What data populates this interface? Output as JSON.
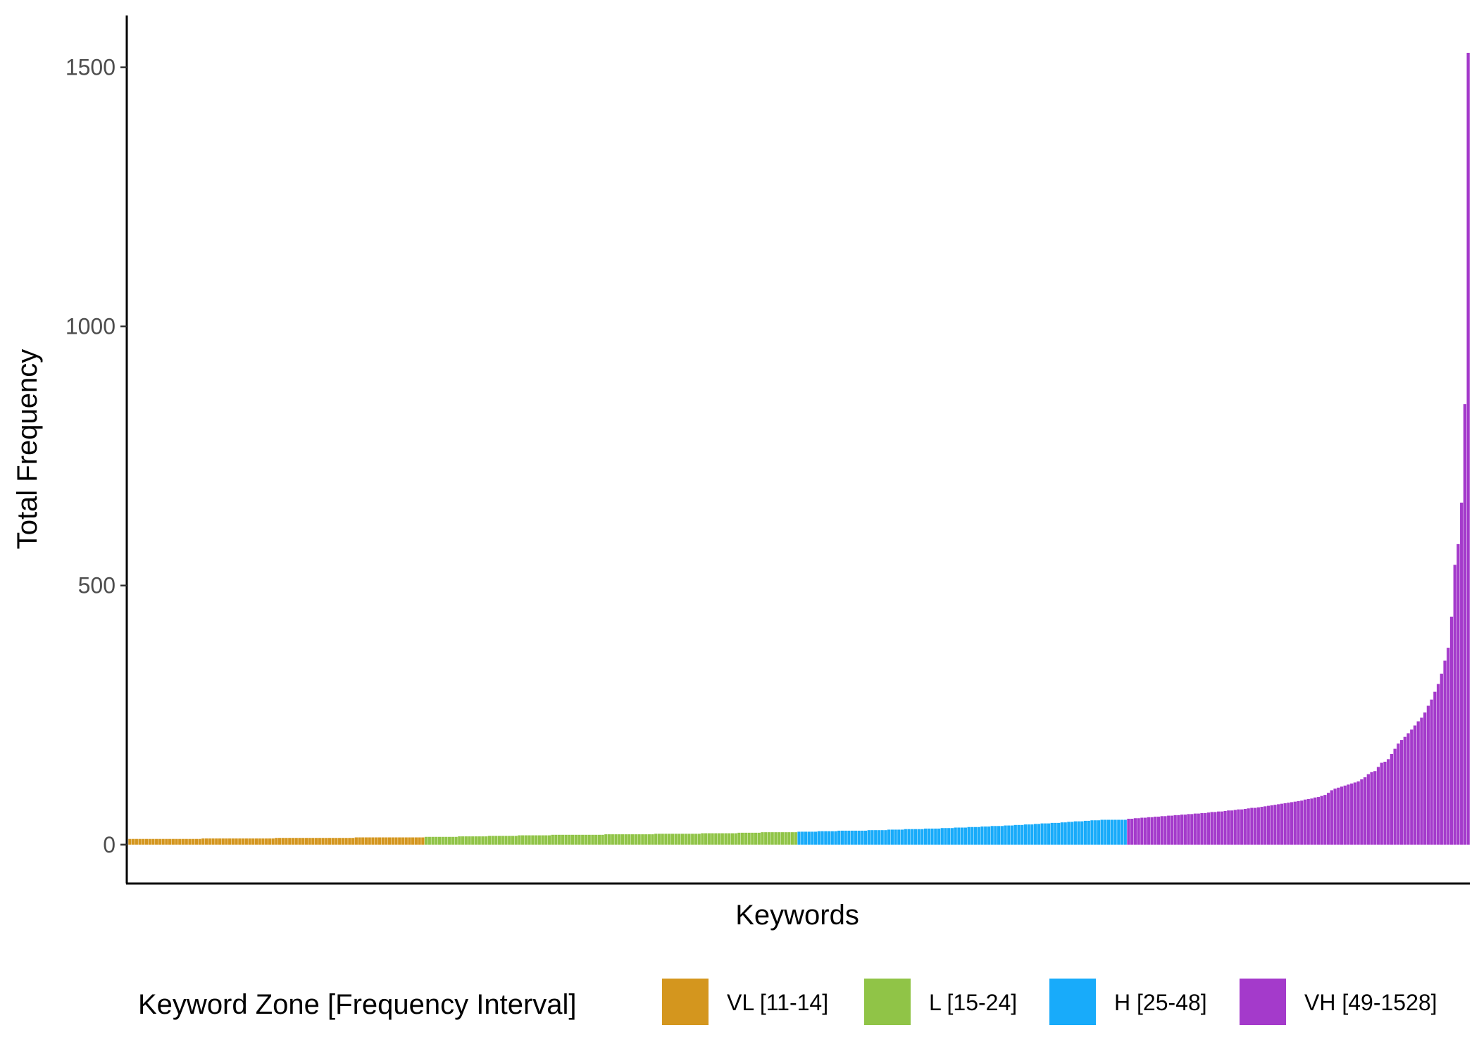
{
  "chart_data": {
    "type": "bar",
    "xlabel": "Keywords",
    "ylabel": "Total Frequency",
    "ylim": [
      -75,
      1600
    ],
    "y_ticks": [
      0,
      500,
      1000,
      1500
    ],
    "x_tick_labels": "none",
    "grid": false,
    "legend_position": "bottom",
    "legend": {
      "title": "Keyword Zone [Frequency Interval]",
      "entries": [
        {
          "label": "VL [11-14]",
          "color": "#D4961E"
        },
        {
          "label": "L [15-24]",
          "color": "#90C447"
        },
        {
          "label": "H [25-48]",
          "color": "#18ABFA"
        },
        {
          "label": "VH [49-1528]",
          "color": "#A43ACB"
        }
      ]
    },
    "series": [
      {
        "name": "VL [11-14]",
        "color": "#D4961E",
        "values": [
          11,
          11,
          11,
          11,
          11,
          11,
          11,
          11,
          11,
          11,
          11,
          11,
          11,
          11,
          11,
          11,
          11,
          11,
          11,
          11,
          11,
          11,
          12,
          12,
          12,
          12,
          12,
          12,
          12,
          12,
          12,
          12,
          12,
          12,
          12,
          12,
          12,
          12,
          12,
          12,
          12,
          12,
          12,
          12,
          13,
          13,
          13,
          13,
          13,
          13,
          13,
          13,
          13,
          13,
          13,
          13,
          13,
          13,
          13,
          13,
          13,
          13,
          13,
          13,
          13,
          13,
          13,
          13,
          14,
          14,
          14,
          14,
          14,
          14,
          14,
          14,
          14,
          14,
          14,
          14,
          14,
          14,
          14,
          14,
          14,
          14,
          14,
          14,
          14
        ]
      },
      {
        "name": "L [15-24]",
        "color": "#90C447",
        "values": [
          15,
          15,
          15,
          15,
          15,
          15,
          15,
          15,
          15,
          15,
          16,
          16,
          16,
          16,
          16,
          16,
          16,
          16,
          16,
          17,
          17,
          17,
          17,
          17,
          17,
          17,
          17,
          17,
          18,
          18,
          18,
          18,
          18,
          18,
          18,
          18,
          18,
          18,
          19,
          19,
          19,
          19,
          19,
          19,
          19,
          19,
          19,
          19,
          19,
          19,
          19,
          19,
          19,
          19,
          20,
          20,
          20,
          20,
          20,
          20,
          20,
          20,
          20,
          20,
          20,
          20,
          20,
          20,
          20,
          21,
          21,
          21,
          21,
          21,
          21,
          21,
          21,
          21,
          21,
          21,
          21,
          21,
          21,
          22,
          22,
          22,
          22,
          22,
          22,
          22,
          22,
          22,
          22,
          22,
          23,
          23,
          23,
          23,
          23,
          23,
          23,
          24,
          24,
          24,
          24,
          24,
          24,
          24,
          24,
          24,
          24,
          24
        ]
      },
      {
        "name": "H [25-48]",
        "color": "#18ABFA",
        "values": [
          25,
          25,
          25,
          25,
          25,
          25,
          26,
          26,
          26,
          26,
          26,
          26,
          27,
          27,
          27,
          27,
          27,
          27,
          27,
          27,
          27,
          28,
          28,
          28,
          28,
          28,
          28,
          29,
          29,
          29,
          29,
          29,
          30,
          30,
          30,
          30,
          30,
          30,
          31,
          31,
          31,
          31,
          31,
          32,
          32,
          32,
          32,
          33,
          33,
          33,
          33,
          34,
          34,
          34,
          34,
          35,
          35,
          35,
          36,
          36,
          36,
          36,
          37,
          37,
          37,
          38,
          38,
          38,
          39,
          39,
          39,
          40,
          40,
          41,
          41,
          41,
          42,
          42,
          42,
          43,
          43,
          44,
          44,
          45,
          45,
          45,
          46,
          46,
          47,
          47,
          47,
          48,
          48,
          48,
          48,
          48,
          48,
          48,
          48
        ]
      },
      {
        "name": "VH [49-1528]",
        "color": "#A43ACB",
        "values": [
          50,
          50,
          51,
          51,
          52,
          52,
          53,
          53,
          54,
          54,
          55,
          55,
          56,
          56,
          57,
          57,
          58,
          58,
          59,
          59,
          60,
          60,
          61,
          61,
          62,
          63,
          63,
          64,
          64,
          65,
          66,
          66,
          67,
          68,
          68,
          69,
          70,
          71,
          71,
          72,
          73,
          74,
          75,
          76,
          77,
          78,
          79,
          80,
          81,
          82,
          83,
          84,
          85,
          87,
          88,
          89,
          91,
          92,
          94,
          96,
          100,
          105,
          108,
          110,
          112,
          114,
          116,
          118,
          120,
          122,
          126,
          130,
          136,
          140,
          142,
          150,
          158,
          160,
          165,
          175,
          185,
          195,
          202,
          208,
          215,
          222,
          230,
          238,
          245,
          255,
          268,
          280,
          295,
          310,
          330,
          355,
          380,
          440,
          540,
          580,
          660,
          850,
          1528
        ]
      }
    ]
  }
}
